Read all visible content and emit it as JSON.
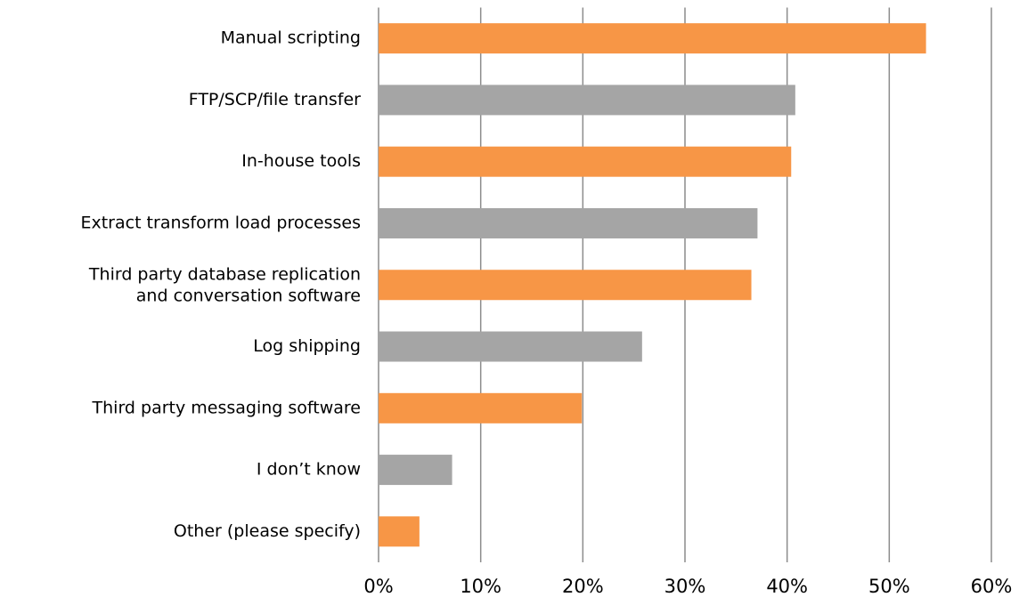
{
  "chart_data": {
    "type": "barh",
    "categories": [
      "Manual scripting",
      "FTP/SCP/file transfer",
      "In-house tools",
      "Extract transform load processes",
      "Third party database replication\nand conversation software",
      "Log shipping",
      "Third party messaging software",
      "I don’t know",
      "Other (please specify)"
    ],
    "values": [
      53.6,
      40.8,
      40.4,
      37.1,
      36.5,
      25.8,
      19.9,
      7.2,
      4.0
    ],
    "colors": [
      "#f79646",
      "#a5a5a5",
      "#f79646",
      "#a5a5a5",
      "#f79646",
      "#a5a5a5",
      "#f79646",
      "#a5a5a5",
      "#f79646"
    ],
    "xlim": [
      0,
      60
    ],
    "xticks": [
      {
        "value": 0,
        "label": "0%"
      },
      {
        "value": 10,
        "label": "10%"
      },
      {
        "value": 20,
        "label": "20%"
      },
      {
        "value": 30,
        "label": "30%"
      },
      {
        "value": 40,
        "label": "40%"
      },
      {
        "value": 50,
        "label": "50%"
      },
      {
        "value": 60,
        "label": "60%"
      }
    ],
    "grid": true
  }
}
